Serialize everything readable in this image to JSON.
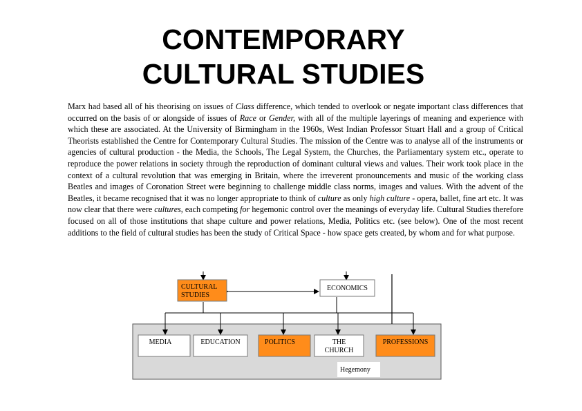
{
  "title": {
    "line1": "CONTEMPORARY",
    "line2": "CULTURAL STUDIES"
  },
  "paragraph": {
    "p1": "Marx had based all of his theorising on issues of ",
    "class_word": "Class",
    "p2": " difference, which tended to overlook or negate important class differences that occurred on the basis of or alongside of issues of ",
    "race_word": "Race",
    "p3": "  or ",
    "gender_word": "Gender,",
    "p4": " with all of the multiple layerings of meaning and experience with which these are associated. At the University of Birmingham in the 1960s, West Indian Professor Stuart Hall and a group of Critical Theorists established the Centre for Contemporary Cultural Studies. The mission of the Centre was to analyse all  of the instruments or agencies of cultural production - the Media, the Schools, The Legal System, the Churches, the Parliamentary system etc., operate to reproduce the power relations in society through the reproduction of dominant cultural views and values. Their work took place in the context of a cultural revolution that was emerging in Britain, where the irreverent pronouncements and music of the working class Beatles and images of Coronation Street were beginning to challenge middle class norms, images and values. With the advent of the Beatles, it became recognised that it was no longer appropriate to think of ",
    "culture_word": "culture",
    "p5": " as only ",
    "high_culture_word": "high culture",
    "p6": " - opera, ballet, fine art etc. It was now clear that there were ",
    "cultures_word": "cultures,",
    "p7": " each competing ",
    "for_word": "for",
    "p8": " hegemonic control over the meanings of everyday life. Cultural Studies therefore focused on all of those institutions that shape culture and  power relations, Media, Politics etc. (see below). One of the most recent additions to the field of cultural studies has been the study of Critical Space - how space gets created, by whom and for what purpose."
  },
  "diagram": {
    "cultural_studies_l1": "CULTURAL",
    "cultural_studies_l2": "STUDIES",
    "economics": "ECONOMICS",
    "media": "MEDIA",
    "education": "EDUCATION",
    "politics": "POLITICS",
    "church_l1": "THE",
    "church_l2": "CHURCH",
    "professions": "PROFESSIONS",
    "hegemony": "Hegemony",
    "colors": {
      "highlight": "#ff8c1a",
      "panel": "#d9d9d9",
      "border": "#777777"
    }
  }
}
